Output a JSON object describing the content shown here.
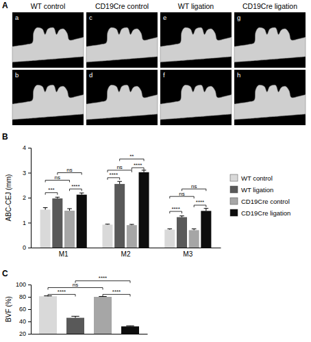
{
  "figure_a": {
    "panel": "A",
    "columns": [
      {
        "title": "WT control",
        "images": [
          "a",
          "b"
        ]
      },
      {
        "title": "CD19Cre control",
        "images": [
          "c",
          "d"
        ]
      },
      {
        "title": "WT ligation",
        "images": [
          "e",
          "f"
        ]
      },
      {
        "title": "CD19Cre ligation",
        "images": [
          "g",
          "h"
        ]
      }
    ]
  },
  "chart_data": [
    {
      "type": "bar",
      "panel": "B",
      "y_label": "ABC-CEJ (mm)",
      "categories": [
        "M1",
        "M2",
        "M3"
      ],
      "series": [
        {
          "name": "WT control",
          "color": "#d9d9d9",
          "values": [
            1.52,
            0.92,
            0.72
          ],
          "errors": [
            0.08,
            0.02,
            0.03
          ]
        },
        {
          "name": "WT ligation",
          "color": "#595959",
          "values": [
            1.97,
            2.55,
            1.22
          ],
          "errors": [
            0.05,
            0.1,
            0.05
          ]
        },
        {
          "name": "CD19Cre control",
          "color": "#a6a6a6",
          "values": [
            1.48,
            0.9,
            0.7
          ],
          "errors": [
            0.08,
            0.03,
            0.05
          ]
        },
        {
          "name": "CD19Cre ligation",
          "color": "#0d0d0d",
          "values": [
            2.12,
            3.02,
            1.47
          ],
          "errors": [
            0.07,
            0.08,
            0.1
          ]
        }
      ],
      "ylim": [
        0,
        4
      ],
      "yticks": [
        0,
        1,
        2,
        3,
        4
      ],
      "legend": "right",
      "annotations": [
        {
          "category": 0,
          "from": 0,
          "to": 1,
          "y": 2.2,
          "label": "***"
        },
        {
          "category": 0,
          "from": 2,
          "to": 3,
          "y": 2.35,
          "label": "****"
        },
        {
          "category": 0,
          "from": 0,
          "to": 2,
          "y": 2.7,
          "label": "ns"
        },
        {
          "category": 0,
          "from": 1,
          "to": 3,
          "y": 3.0,
          "label": "ns"
        },
        {
          "category": 1,
          "from": 0,
          "to": 1,
          "y": 2.8,
          "label": "****"
        },
        {
          "category": 1,
          "from": 0,
          "to": 2,
          "y": 3.1,
          "label": "ns"
        },
        {
          "category": 1,
          "from": 2,
          "to": 3,
          "y": 3.2,
          "label": "****"
        },
        {
          "category": 1,
          "from": 1,
          "to": 3,
          "y": 3.55,
          "label": "**"
        },
        {
          "category": 2,
          "from": 0,
          "to": 1,
          "y": 1.45,
          "label": "****"
        },
        {
          "category": 2,
          "from": 2,
          "to": 3,
          "y": 1.7,
          "label": "****"
        },
        {
          "category": 2,
          "from": 0,
          "to": 2,
          "y": 2.05,
          "label": "ns"
        },
        {
          "category": 2,
          "from": 1,
          "to": 3,
          "y": 2.35,
          "label": "ns"
        }
      ]
    },
    {
      "type": "bar",
      "panel": "C",
      "y_label": "BVF (%)",
      "categories": [
        null,
        null,
        null,
        null
      ],
      "values": [
        81,
        46,
        80,
        32
      ],
      "errors": [
        0.6,
        2.5,
        0.6,
        1
      ],
      "colors": [
        "#d9d9d9",
        "#595959",
        "#a6a6a6",
        "#0d0d0d"
      ],
      "ylim": [
        20,
        100
      ],
      "yticks": [
        20,
        40,
        60,
        80,
        100
      ],
      "annotations": [
        {
          "from": 0,
          "to": 1,
          "y": 84,
          "label": "****"
        },
        {
          "from": 2,
          "to": 3,
          "y": 84,
          "label": "****"
        },
        {
          "from": 0,
          "to": 2,
          "y": 95,
          "label": "ns"
        },
        {
          "from": 1,
          "to": 3,
          "y": 106,
          "label": "****"
        }
      ]
    }
  ]
}
